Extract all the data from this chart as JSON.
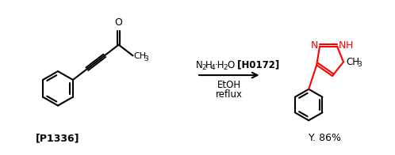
{
  "bg_color": "#ffffff",
  "figsize": [
    4.98,
    1.96
  ],
  "dpi": 100,
  "reactant_label": "[P1336]",
  "product_label": "Y. 86%",
  "reagent_line2": "EtOH",
  "reagent_line3": "reflux",
  "reagent_bold": "[H0172]",
  "arrow_color": "#000000",
  "red_color": "#ff0000",
  "black_color": "#000000"
}
